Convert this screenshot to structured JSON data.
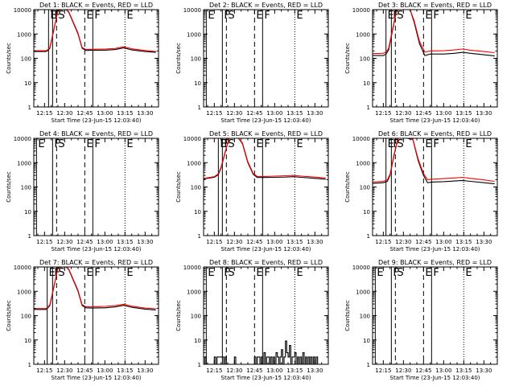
{
  "chart_data": [
    {
      "type": "line",
      "title": "Det 1: BLACK = Events, RED = LLD",
      "xlabel": "Start Time (23-Jun-15 12:03:40)",
      "ylabel": "Counts/sec",
      "xlim": [
        "12:07",
        "13:40"
      ],
      "ylim": [
        1,
        10000
      ],
      "x_tick_labels": [
        "12:15",
        "12:30",
        "12:45",
        "13:00",
        "13:15",
        "13:30"
      ],
      "y_tick_labels": [
        "1",
        "10",
        "100",
        "1000",
        "10000"
      ],
      "markers": [
        {
          "label": "E",
          "time": "12:18"
        },
        {
          "label": "F",
          "time": "12:21"
        },
        {
          "label": "S",
          "time": "12:24"
        },
        {
          "label": "E",
          "time": "12:45"
        },
        {
          "label": "F",
          "time": "12:51"
        },
        {
          "label": "E",
          "time": "13:15"
        }
      ],
      "series": [
        {
          "name": "Events",
          "color": "#000000",
          "x": [
            "12:07",
            "12:16",
            "12:17",
            "12:19",
            "12:22",
            "12:25",
            "12:28",
            "12:31",
            "12:33",
            "12:40",
            "12:43",
            "12:46",
            "12:50",
            "13:00",
            "13:08",
            "13:14",
            "13:20",
            "13:30",
            "13:38"
          ],
          "y": [
            190,
            190,
            200,
            260,
            1500,
            9500,
            10000,
            10000,
            8000,
            1000,
            260,
            210,
            215,
            215,
            230,
            270,
            220,
            190,
            175
          ]
        },
        {
          "name": "LLD",
          "color": "#ff0000",
          "x": [
            "12:07",
            "12:16",
            "12:17",
            "12:19",
            "12:22",
            "12:25",
            "12:28",
            "12:31",
            "12:33",
            "12:40",
            "12:43",
            "12:46",
            "12:50",
            "13:00",
            "13:08",
            "13:14",
            "13:20",
            "13:30",
            "13:38"
          ],
          "y": [
            205,
            205,
            215,
            280,
            1600,
            9500,
            10000,
            10000,
            8500,
            1100,
            280,
            230,
            235,
            240,
            255,
            300,
            245,
            210,
            190
          ]
        }
      ]
    },
    {
      "type": "line",
      "title": "Det 2: BLACK = Events, RED = LLD",
      "xlabel": "Start Time (23-Jun-15 12:03:40)",
      "ylabel": "Counts/sec",
      "xlim": [
        "12:07",
        "13:40"
      ],
      "ylim": [
        1,
        10000
      ],
      "x_tick_labels": [
        "12:15",
        "12:30",
        "12:45",
        "13:00",
        "13:15",
        "13:30"
      ],
      "y_tick_labels": [
        "1",
        "10",
        "100",
        "1000",
        "10000"
      ],
      "markers": [
        {
          "label": "E",
          "time": "12:09"
        },
        {
          "label": "F",
          "time": "12:21"
        },
        {
          "label": "S",
          "time": "12:24"
        },
        {
          "label": "E",
          "time": "12:45"
        },
        {
          "label": "F",
          "time": "12:51"
        },
        {
          "label": "E",
          "time": "13:15"
        }
      ],
      "series": []
    },
    {
      "type": "line",
      "title": "Det 3: BLACK = Events, RED = LLD",
      "xlabel": "Start Time (23-Jun-15 12:03:40)",
      "ylabel": "Counts/sec",
      "xlim": [
        "12:07",
        "13:40"
      ],
      "ylim": [
        1,
        10000
      ],
      "x_tick_labels": [
        "12:15",
        "12:30",
        "12:45",
        "13:00",
        "13:15",
        "13:30"
      ],
      "y_tick_labels": [
        "1",
        "10",
        "100",
        "1000",
        "10000"
      ],
      "markers": [
        {
          "label": "E",
          "time": "12:17"
        },
        {
          "label": "F",
          "time": "12:21"
        },
        {
          "label": "S",
          "time": "12:24"
        },
        {
          "label": "E",
          "time": "12:45"
        },
        {
          "label": "F",
          "time": "12:51"
        },
        {
          "label": "E",
          "time": "13:15"
        }
      ],
      "series": [
        {
          "name": "Events",
          "color": "#000000",
          "x": [
            "12:07",
            "12:15",
            "12:17",
            "12:19",
            "12:22",
            "12:25",
            "12:28",
            "12:30",
            "12:35",
            "12:38",
            "12:42",
            "12:46",
            "12:50",
            "13:00",
            "13:08",
            "13:14",
            "13:20",
            "13:30",
            "13:38"
          ],
          "y": [
            130,
            130,
            150,
            220,
            1500,
            10000,
            10000,
            10000,
            10000,
            3000,
            400,
            130,
            150,
            150,
            160,
            175,
            160,
            140,
            125
          ]
        },
        {
          "name": "LLD",
          "color": "#ff0000",
          "x": [
            "12:07",
            "12:15",
            "12:17",
            "12:19",
            "12:22",
            "12:25",
            "12:28",
            "12:30",
            "12:35",
            "12:38",
            "12:42",
            "12:46",
            "12:50",
            "13:00",
            "13:08",
            "13:14",
            "13:20",
            "13:30",
            "13:38"
          ],
          "y": [
            155,
            160,
            180,
            260,
            1700,
            10000,
            10000,
            10000,
            10000,
            3500,
            500,
            180,
            200,
            205,
            220,
            240,
            215,
            190,
            170
          ]
        }
      ]
    },
    {
      "type": "line",
      "title": "Det 4: BLACK = Events, RED = LLD",
      "xlabel": "Start Time (23-Jun-15 12:03:40)",
      "ylabel": "Counts/sec",
      "xlim": [
        "12:07",
        "13:40"
      ],
      "ylim": [
        1,
        10000
      ],
      "x_tick_labels": [
        "12:15",
        "12:30",
        "12:45",
        "13:00",
        "13:15",
        "13:30"
      ],
      "y_tick_labels": [
        "1",
        "10",
        "100",
        "1000",
        "10000"
      ],
      "markers": [
        {
          "label": "E",
          "time": "12:09"
        },
        {
          "label": "F",
          "time": "12:21"
        },
        {
          "label": "S",
          "time": "12:24"
        },
        {
          "label": "E",
          "time": "12:45"
        },
        {
          "label": "F",
          "time": "12:51"
        },
        {
          "label": "E",
          "time": "13:15"
        }
      ],
      "series": []
    },
    {
      "type": "line",
      "title": "Det 5: BLACK = Events, RED = LLD",
      "xlabel": "Start Time (23-Jun-15 12:03:40)",
      "ylabel": "Counts/sec",
      "xlim": [
        "12:07",
        "13:40"
      ],
      "ylim": [
        1,
        10000
      ],
      "x_tick_labels": [
        "12:15",
        "12:30",
        "12:45",
        "13:00",
        "13:15",
        "13:30"
      ],
      "y_tick_labels": [
        "1",
        "10",
        "100",
        "1000",
        "10000"
      ],
      "markers": [
        {
          "label": "E",
          "time": "12:18"
        },
        {
          "label": "F",
          "time": "12:21"
        },
        {
          "label": "S",
          "time": "12:24"
        },
        {
          "label": "E",
          "time": "12:45"
        },
        {
          "label": "F",
          "time": "12:51"
        },
        {
          "label": "E",
          "time": "13:15"
        }
      ],
      "series": [
        {
          "name": "Events",
          "color": "#000000",
          "x": [
            "12:07",
            "12:15",
            "12:18",
            "12:20",
            "12:23",
            "12:26",
            "12:29",
            "12:33",
            "12:36",
            "12:40",
            "12:44",
            "12:47",
            "12:52",
            "13:00",
            "13:08",
            "13:14",
            "13:20",
            "13:30",
            "13:38"
          ],
          "y": [
            215,
            250,
            320,
            600,
            2500,
            10000,
            10000,
            10000,
            6000,
            1000,
            330,
            245,
            245,
            250,
            255,
            265,
            250,
            225,
            210
          ]
        },
        {
          "name": "LLD",
          "color": "#ff0000",
          "x": [
            "12:07",
            "12:15",
            "12:18",
            "12:20",
            "12:23",
            "12:26",
            "12:29",
            "12:33",
            "12:36",
            "12:40",
            "12:44",
            "12:47",
            "12:52",
            "13:00",
            "13:08",
            "13:14",
            "13:20",
            "13:30",
            "13:38"
          ],
          "y": [
            225,
            265,
            345,
            650,
            2700,
            10000,
            10000,
            10000,
            6500,
            1100,
            360,
            270,
            270,
            280,
            290,
            300,
            280,
            255,
            235
          ]
        }
      ]
    },
    {
      "type": "line",
      "title": "Det 6: BLACK = Events, RED = LLD",
      "xlabel": "Start Time (23-Jun-15 12:03:40)",
      "ylabel": "Counts/sec",
      "xlim": [
        "12:07",
        "13:40"
      ],
      "ylim": [
        1,
        10000
      ],
      "x_tick_labels": [
        "12:15",
        "12:30",
        "12:45",
        "13:00",
        "13:15",
        "13:30"
      ],
      "y_tick_labels": [
        "1",
        "10",
        "100",
        "1000",
        "10000"
      ],
      "markers": [
        {
          "label": "E",
          "time": "12:17"
        },
        {
          "label": "F",
          "time": "12:21"
        },
        {
          "label": "S",
          "time": "12:24"
        },
        {
          "label": "E",
          "time": "12:45"
        },
        {
          "label": "F",
          "time": "12:51"
        },
        {
          "label": "E",
          "time": "13:15"
        }
      ],
      "series": [
        {
          "name": "Events",
          "color": "#000000",
          "x": [
            "12:07",
            "12:15",
            "12:18",
            "12:20",
            "12:23",
            "12:26",
            "12:29",
            "12:33",
            "12:37",
            "12:41",
            "12:45",
            "12:48",
            "12:52",
            "13:00",
            "13:08",
            "13:14",
            "13:20",
            "13:30",
            "13:38"
          ],
          "y": [
            140,
            150,
            170,
            300,
            2000,
            10000,
            10000,
            10000,
            9000,
            1200,
            300,
            150,
            160,
            165,
            175,
            185,
            170,
            150,
            135
          ]
        },
        {
          "name": "LLD",
          "color": "#ff0000",
          "x": [
            "12:07",
            "12:15",
            "12:18",
            "12:20",
            "12:23",
            "12:26",
            "12:29",
            "12:33",
            "12:37",
            "12:41",
            "12:45",
            "12:48",
            "12:52",
            "13:00",
            "13:08",
            "13:14",
            "13:20",
            "13:30",
            "13:38"
          ],
          "y": [
            160,
            170,
            195,
            330,
            2200,
            10000,
            10000,
            10000,
            9500,
            1400,
            360,
            200,
            210,
            220,
            235,
            250,
            225,
            195,
            170
          ]
        }
      ]
    },
    {
      "type": "line",
      "title": "Det 7: BLACK = Events, RED = LLD",
      "xlabel": "Start Time (23-Jun-15 12:03:40)",
      "ylabel": "Counts/sec",
      "xlim": [
        "12:07",
        "13:40"
      ],
      "ylim": [
        1,
        10000
      ],
      "x_tick_labels": [
        "12:15",
        "12:30",
        "12:45",
        "13:00",
        "13:15",
        "13:30"
      ],
      "y_tick_labels": [
        "1",
        "10",
        "100",
        "1000",
        "10000"
      ],
      "markers": [
        {
          "label": "E",
          "time": "12:17"
        },
        {
          "label": "F",
          "time": "12:21"
        },
        {
          "label": "S",
          "time": "12:24"
        },
        {
          "label": "E",
          "time": "12:45"
        },
        {
          "label": "F",
          "time": "12:51"
        },
        {
          "label": "E",
          "time": "13:15"
        }
      ],
      "series": [
        {
          "name": "Events",
          "color": "#000000",
          "x": [
            "12:07",
            "12:16",
            "12:17",
            "12:19",
            "12:22",
            "12:25",
            "12:28",
            "12:31",
            "12:33",
            "12:40",
            "12:43",
            "12:46",
            "12:50",
            "13:00",
            "13:08",
            "13:14",
            "13:20",
            "13:30",
            "13:38"
          ],
          "y": [
            180,
            180,
            195,
            260,
            1500,
            9500,
            10000,
            10000,
            8000,
            1000,
            260,
            210,
            205,
            210,
            230,
            265,
            220,
            185,
            170
          ]
        },
        {
          "name": "LLD",
          "color": "#ff0000",
          "x": [
            "12:07",
            "12:16",
            "12:17",
            "12:19",
            "12:22",
            "12:25",
            "12:28",
            "12:31",
            "12:33",
            "12:40",
            "12:43",
            "12:46",
            "12:50",
            "13:00",
            "13:08",
            "13:14",
            "13:20",
            "13:30",
            "13:38"
          ],
          "y": [
            195,
            195,
            210,
            285,
            1600,
            9500,
            10000,
            10000,
            8500,
            1100,
            285,
            230,
            230,
            240,
            260,
            295,
            245,
            205,
            190
          ]
        }
      ]
    },
    {
      "type": "line",
      "title": "Det 8: BLACK = Events, RED = LLD",
      "xlabel": "Start Time (23-Jun-15 12:03:40)",
      "ylabel": "Counts/sec",
      "xlim": [
        "12:07",
        "13:40"
      ],
      "ylim": [
        1,
        10000
      ],
      "x_tick_labels": [
        "12:15",
        "12:30",
        "12:45",
        "13:00",
        "13:15",
        "13:30"
      ],
      "y_tick_labels": [
        "1",
        "10",
        "100",
        "1000",
        "10000"
      ],
      "markers": [
        {
          "label": "E",
          "time": "12:09"
        },
        {
          "label": "F",
          "time": "12:21"
        },
        {
          "label": "S",
          "time": "12:24"
        },
        {
          "label": "E",
          "time": "12:45"
        },
        {
          "label": "F",
          "time": "12:51"
        },
        {
          "label": "E",
          "time": "13:15"
        }
      ],
      "series": [
        {
          "name": "Events",
          "color": "#000000",
          "x": [
            "12:07",
            "12:08",
            "12:09",
            "12:15",
            "12:16",
            "12:17",
            "12:22",
            "12:23",
            "12:24",
            "12:30",
            "12:31",
            "12:32",
            "12:45",
            "12:46",
            "12:47",
            "12:48",
            "12:49",
            "12:50",
            "12:51",
            "12:52",
            "12:53",
            "12:54",
            "12:55",
            "12:56",
            "12:57",
            "12:58",
            "12:59",
            "13:00",
            "13:01",
            "13:02",
            "13:03",
            "13:04",
            "13:05",
            "13:06",
            "13:07",
            "13:08",
            "13:09",
            "13:10",
            "13:11",
            "13:12",
            "13:13",
            "13:14",
            "13:15",
            "13:16",
            "13:17",
            "13:18",
            "13:19",
            "13:20",
            "13:21",
            "13:22",
            "13:23",
            "13:24",
            "13:25",
            "13:26",
            "13:27",
            "13:28",
            "13:29",
            "13:30",
            "13:31",
            "13:32",
            "13:33"
          ],
          "y": [
            2,
            1,
            2,
            1,
            2,
            1,
            2,
            1,
            2,
            1,
            2,
            1,
            1,
            2,
            1,
            2,
            2,
            1,
            2,
            1,
            3,
            1,
            2,
            2,
            1,
            2,
            1,
            2,
            1,
            3,
            2,
            1,
            2,
            4,
            1,
            2,
            9,
            3,
            2,
            6,
            1,
            2,
            2,
            3,
            1,
            2,
            1,
            2,
            1,
            3,
            1,
            2,
            1,
            2,
            1,
            2,
            1,
            2,
            1,
            2,
            1
          ]
        }
      ]
    },
    {
      "type": "line",
      "title": "Det 9: BLACK = Events, RED = LLD",
      "xlabel": "Start Time (23-Jun-15 12:03:40)",
      "ylabel": "Counts/sec",
      "xlim": [
        "12:07",
        "13:40"
      ],
      "ylim": [
        1,
        10000
      ],
      "x_tick_labels": [
        "12:15",
        "12:30",
        "12:45",
        "13:00",
        "13:15",
        "13:30"
      ],
      "y_tick_labels": [
        "1",
        "10",
        "100",
        "1000",
        "10000"
      ],
      "markers": [
        {
          "label": "E",
          "time": "12:09"
        },
        {
          "label": "F",
          "time": "12:21"
        },
        {
          "label": "S",
          "time": "12:24"
        },
        {
          "label": "E",
          "time": "12:45"
        },
        {
          "label": "F",
          "time": "12:51"
        },
        {
          "label": "E",
          "time": "13:15"
        }
      ],
      "series": []
    }
  ]
}
